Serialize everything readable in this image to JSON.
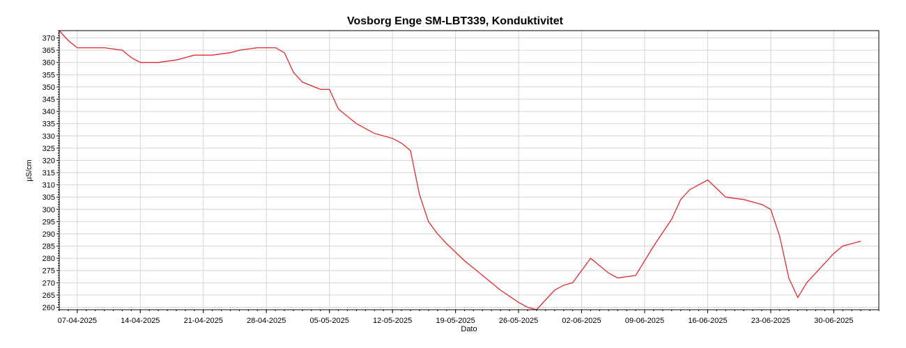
{
  "chart_data": {
    "type": "line",
    "title": "Vosborg Enge SM-LBT339, Konduktivitet",
    "xlabel": "Dato",
    "ylabel": "µS/cm",
    "ylim": [
      259,
      373
    ],
    "xlim": [
      "2025-04-05",
      "2025-07-05"
    ],
    "x_ticks": [
      "07-04-2025",
      "14-04-2025",
      "21-04-2025",
      "28-04-2025",
      "05-05-2025",
      "12-05-2025",
      "19-05-2025",
      "26-05-2025",
      "02-06-2025",
      "09-06-2025",
      "16-06-2025",
      "23-06-2025",
      "30-06-2025"
    ],
    "y_ticks": [
      260,
      265,
      270,
      275,
      280,
      285,
      290,
      295,
      300,
      305,
      310,
      315,
      320,
      325,
      330,
      335,
      340,
      345,
      350,
      355,
      360,
      365,
      370
    ],
    "grid": true,
    "legend": "none",
    "line_color": "#e0282c",
    "series": [
      {
        "x": [
          "2025-04-05",
          "2025-04-06",
          "2025-04-07",
          "2025-04-08",
          "2025-04-10",
          "2025-04-12",
          "2025-04-13",
          "2025-04-14",
          "2025-04-16",
          "2025-04-18",
          "2025-04-19",
          "2025-04-20",
          "2025-04-22",
          "2025-04-24",
          "2025-04-25",
          "2025-04-27",
          "2025-04-29",
          "2025-04-30",
          "2025-05-01",
          "2025-05-02",
          "2025-05-04",
          "2025-05-05",
          "2025-05-06",
          "2025-05-08",
          "2025-05-10",
          "2025-05-12",
          "2025-05-13",
          "2025-05-14",
          "2025-05-15",
          "2025-05-16",
          "2025-05-17",
          "2025-05-18",
          "2025-05-20",
          "2025-05-22",
          "2025-05-24",
          "2025-05-26",
          "2025-05-27",
          "2025-05-28",
          "2025-05-30",
          "2025-05-31",
          "2025-06-01",
          "2025-06-03",
          "2025-06-04",
          "2025-06-05",
          "2025-06-06",
          "2025-06-08",
          "2025-06-10",
          "2025-06-12",
          "2025-06-13",
          "2025-06-14",
          "2025-06-16",
          "2025-06-18",
          "2025-06-20",
          "2025-06-21",
          "2025-06-22",
          "2025-06-23",
          "2025-06-24",
          "2025-06-25",
          "2025-06-26",
          "2025-06-27",
          "2025-06-28",
          "2025-06-29",
          "2025-06-30",
          "2025-07-01",
          "2025-07-02",
          "2025-07-03"
        ],
        "y": [
          373,
          369,
          366,
          366,
          366,
          365,
          362,
          360,
          360,
          361,
          362,
          363,
          363,
          364,
          365,
          366,
          366,
          364,
          356,
          352,
          349,
          349,
          341,
          335,
          331,
          329,
          327,
          324,
          306,
          295,
          290,
          286,
          279,
          273,
          267,
          262,
          260,
          259,
          267,
          269,
          270,
          280,
          277,
          274,
          272,
          273,
          285,
          296,
          304,
          308,
          312,
          305,
          304,
          303,
          302,
          300,
          289,
          272,
          264,
          270,
          274,
          278,
          282,
          285,
          286,
          287
        ]
      }
    ]
  }
}
